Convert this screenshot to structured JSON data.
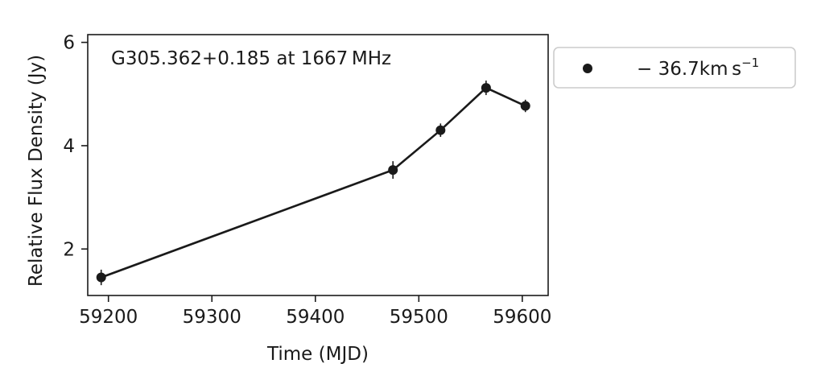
{
  "chart_data": {
    "type": "line",
    "annotation": "G305.362+0.185 at 1667 MHz",
    "xlabel": "Time (MJD)",
    "ylabel": "Relative Flux Density (Jy)",
    "xlim": [
      59180,
      59625
    ],
    "ylim": [
      1.1,
      6.15
    ],
    "xticks": [
      59200,
      59300,
      59400,
      59500,
      59600
    ],
    "yticks": [
      2,
      4,
      6
    ],
    "grid": false,
    "legend_position": "outside-right",
    "series": [
      {
        "name": "− 36.7km s",
        "name_superscript": "−1",
        "color": "#1a1a1a",
        "x": [
          59193,
          59475,
          59521,
          59565,
          59603
        ],
        "y": [
          1.45,
          3.53,
          4.3,
          5.12,
          4.77
        ],
        "yerr": [
          0.15,
          0.17,
          0.13,
          0.14,
          0.12
        ]
      }
    ]
  }
}
